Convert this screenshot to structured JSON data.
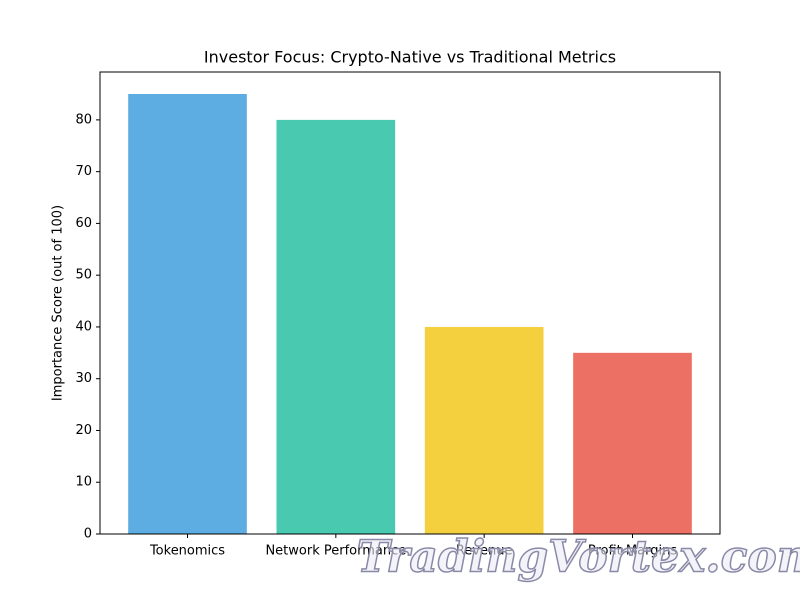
{
  "chart_data": {
    "type": "bar",
    "title": "Investor Focus: Crypto-Native vs Traditional Metrics",
    "y_label": "Importance Score (out of 100)",
    "categories": [
      "Tokenomics",
      "Network Performance",
      "Revenue",
      "Profit Margins"
    ],
    "values": [
      85,
      80,
      40,
      35
    ],
    "colors": [
      "#5dade2",
      "#48c9b0",
      "#f4d03f",
      "#ec7063"
    ],
    "ylim": [
      0,
      89.25
    ],
    "yticks": [
      0,
      10,
      20,
      30,
      40,
      50,
      60,
      70,
      80
    ],
    "watermark": "TradingVortex.com"
  }
}
